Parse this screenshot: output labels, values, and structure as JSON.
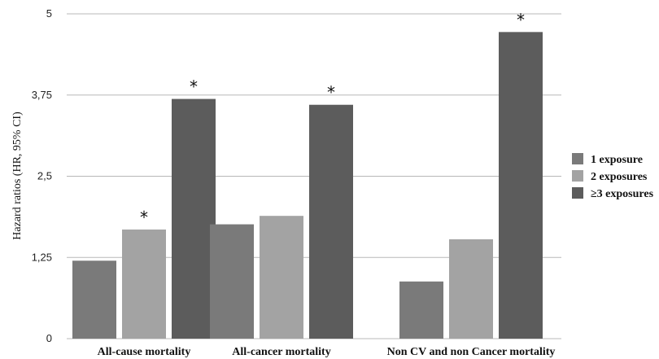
{
  "chart_data": {
    "type": "bar",
    "title": "",
    "xlabel": "",
    "ylabel": "Hazard ratios  (HR, 95% CI)",
    "ylim": [
      0,
      5
    ],
    "yticks": [
      0,
      1.25,
      2.5,
      3.75,
      5
    ],
    "ytick_labels": [
      "0",
      "1,25",
      "2,5",
      "3,75",
      "5"
    ],
    "grid": true,
    "legend_position": "right",
    "categories": [
      "All-cause mortality",
      "All-cancer mortality",
      "Non CV and non Cancer mortality"
    ],
    "series": [
      {
        "name": "1 exposure",
        "color": "#7a7a7a",
        "values": [
          1.2,
          1.76,
          0.88
        ],
        "significant": [
          false,
          false,
          false
        ]
      },
      {
        "name": "2 exposures",
        "color": "#a3a3a3",
        "values": [
          1.68,
          1.89,
          1.53
        ],
        "significant": [
          true,
          false,
          false
        ]
      },
      {
        "name": "≥3 exposures",
        "color": "#5c5c5c",
        "values": [
          3.69,
          3.6,
          4.72
        ],
        "significant": [
          true,
          true,
          true
        ]
      }
    ],
    "significance_marker": "*"
  }
}
